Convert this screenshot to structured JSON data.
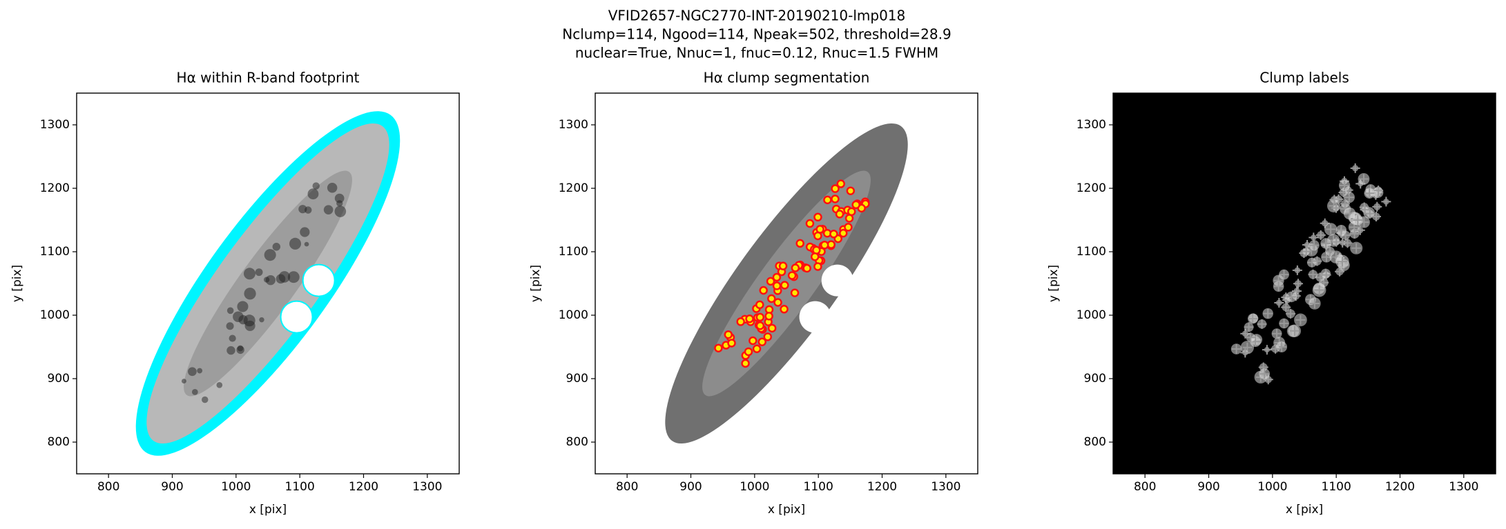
{
  "figure_title": [
    "VFID2657-NGC2770-INT-20190210-lmp018",
    "Nclump=114, Ngood=114, Npeak=502, threshold=28.9",
    "nuclear=True, Nnuc=1, fnuc=0.12, Rnuc=1.5 FWHM"
  ],
  "chart_data": [
    {
      "type": "image",
      "title": "Hα within R-band footprint",
      "xlabel": "x [pix]",
      "ylabel": "y [pix]",
      "xlim": [
        750,
        1350
      ],
      "ylim": [
        750,
        1350
      ],
      "xticks": [
        800,
        900,
        1000,
        1100,
        1200,
        1300
      ],
      "yticks": [
        800,
        900,
        1000,
        1100,
        1200,
        1300
      ],
      "background": "#ffffff"
    },
    {
      "type": "image",
      "title": "Hα clump segmentation",
      "xlabel": "x [pix]",
      "ylabel": "y [pix]",
      "xlim": [
        750,
        1350
      ],
      "ylim": [
        750,
        1350
      ],
      "xticks": [
        800,
        900,
        1000,
        1100,
        1200,
        1300
      ],
      "yticks": [
        800,
        900,
        1000,
        1100,
        1200,
        1300
      ],
      "background": "#ffffff"
    },
    {
      "type": "image",
      "title": "Clump labels",
      "xlabel": "x [pix]",
      "ylabel": "y [pix]",
      "xlim": [
        750,
        1350
      ],
      "ylim": [
        750,
        1350
      ],
      "xticks": [
        800,
        900,
        1000,
        1100,
        1200,
        1300
      ],
      "yticks": [
        800,
        900,
        1000,
        1100,
        1200,
        1300
      ],
      "background": "#000000"
    }
  ]
}
